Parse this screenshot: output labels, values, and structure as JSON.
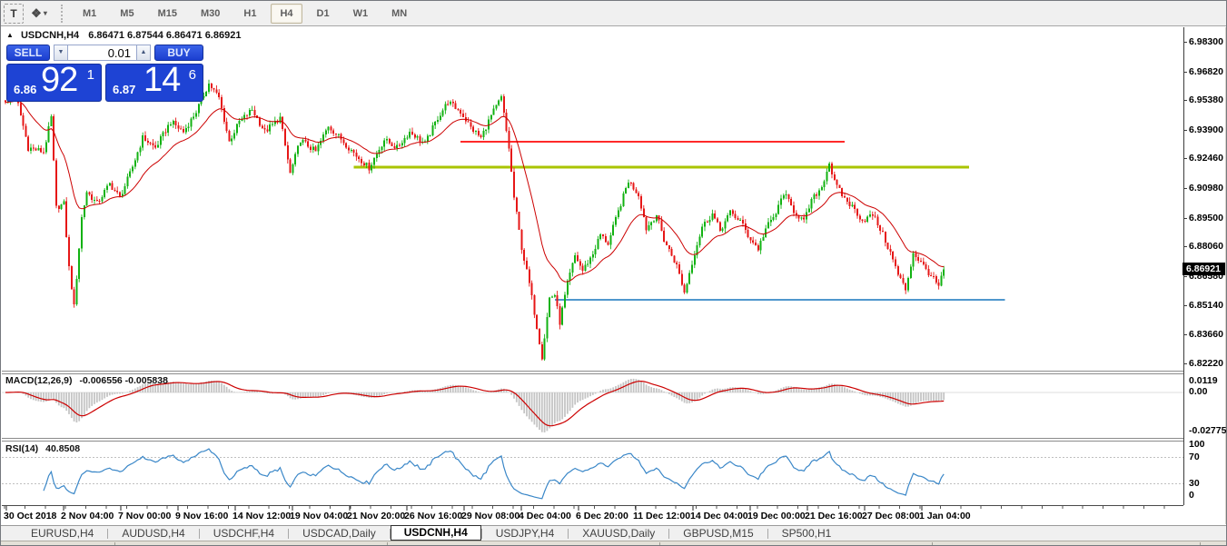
{
  "toolbar": {
    "text_tool_label": "T",
    "timeframes": [
      "M1",
      "M5",
      "M15",
      "M30",
      "H1",
      "H4",
      "D1",
      "W1",
      "MN"
    ],
    "active_timeframe": "H4"
  },
  "chart": {
    "title_symbol": "USDCNH,H4",
    "title_ohlc": "6.86471 6.87544 6.86471 6.86921"
  },
  "trade_panel": {
    "sell_label": "SELL",
    "buy_label": "BUY",
    "volume": "0.01",
    "sell_price_small": "6.86",
    "sell_price_big": "92",
    "sell_price_sup": "1",
    "buy_price_small": "6.87",
    "buy_price_big": "14",
    "buy_price_sup": "6"
  },
  "indicator_panels": {
    "macd": {
      "label": "MACD(12,26,9)",
      "values": "-0.006556 -0.005838"
    },
    "rsi": {
      "label": "RSI(14)",
      "value": "40.8508"
    }
  },
  "tabs": {
    "active_index": 4,
    "items": [
      "EURUSD,H4",
      "AUDUSD,H4",
      "USDCHF,H4",
      "USDCAD,Daily",
      "USDCNH,H4",
      "USDJPY,H4",
      "XAUUSD,Daily",
      "GBPUSD,M15",
      "SP500,H1"
    ]
  },
  "chart_data": {
    "type": "candlestick",
    "symbol": "USDCNH",
    "timeframe": "H4",
    "current_bar": {
      "open": 6.86471,
      "high": 6.87544,
      "low": 6.86471,
      "close": 6.86921
    },
    "current_price": "6.86921",
    "price_ticks": [
      "6.98300",
      "6.96820",
      "6.95380",
      "6.93900",
      "6.92460",
      "6.90980",
      "6.89500",
      "6.88060",
      "6.86580",
      "6.85140",
      "6.83660",
      "6.82220"
    ],
    "price_range": [
      6.8222,
      6.983
    ],
    "time_labels": [
      "30 Oct 2018",
      "2 Nov 04:00",
      "7 Nov 00:00",
      "9 Nov 16:00",
      "14 Nov 12:00",
      "19 Nov 04:00",
      "21 Nov 20:00",
      "26 Nov 16:00",
      "29 Nov 08:00",
      "4 Dec 04:00",
      "6 Dec 20:00",
      "11 Dec 12:00",
      "14 Dec 04:00",
      "19 Dec 00:00",
      "21 Dec 16:00",
      "27 Dec 08:00",
      "1 Jan 04:00"
    ],
    "macd_ticks": [
      "0.0119",
      "0.00",
      "-0.027754"
    ],
    "rsi_ticks": [
      "100",
      "70",
      "30",
      "0"
    ],
    "rsi_levels": [
      70,
      30
    ],
    "bars_visible": 370,
    "colors": {
      "up": "#12b212",
      "down": "#e61717",
      "ma": "#cc0000",
      "macd_hist": "#c4c4c4",
      "macd_signal": "#cc0000",
      "rsi_line": "#3a87c8",
      "level_dash": "#c0c0c0"
    },
    "moving_average": {
      "type": "EMA",
      "period": 20
    },
    "horizontal_lines": [
      {
        "name": "resistance-red",
        "price": 6.933,
        "color": "#ff2a2a",
        "width": 2,
        "bar_from": 179,
        "bar_to": 330
      },
      {
        "name": "resistance-olive",
        "price": 6.9203,
        "color": "#aac400",
        "width": 3,
        "bar_from": 137,
        "bar_to": 379
      },
      {
        "name": "support-teal",
        "price": 6.8538,
        "color": "#4f97cd",
        "width": 2,
        "bar_from": 216,
        "bar_to": 393
      }
    ],
    "close_keyframes": [
      [
        0,
        6.952
      ],
      [
        4,
        6.957
      ],
      [
        9,
        6.93
      ],
      [
        15,
        6.928
      ],
      [
        18,
        6.945
      ],
      [
        20,
        6.9
      ],
      [
        23,
        6.902
      ],
      [
        25,
        6.87
      ],
      [
        27,
        6.8505
      ],
      [
        30,
        6.895
      ],
      [
        32,
        6.908
      ],
      [
        36,
        6.902
      ],
      [
        41,
        6.912
      ],
      [
        45,
        6.905
      ],
      [
        49,
        6.917
      ],
      [
        54,
        6.935
      ],
      [
        59,
        6.93
      ],
      [
        65,
        6.943
      ],
      [
        70,
        6.938
      ],
      [
        75,
        6.948
      ],
      [
        80,
        6.962
      ],
      [
        84,
        6.955
      ],
      [
        88,
        6.933
      ],
      [
        92,
        6.943
      ],
      [
        97,
        6.949
      ],
      [
        102,
        6.938
      ],
      [
        108,
        6.945
      ],
      [
        112,
        6.917
      ],
      [
        116,
        6.934
      ],
      [
        122,
        6.928
      ],
      [
        127,
        6.941
      ],
      [
        133,
        6.933
      ],
      [
        138,
        6.926
      ],
      [
        143,
        6.92
      ],
      [
        149,
        6.934
      ],
      [
        154,
        6.93
      ],
      [
        159,
        6.938
      ],
      [
        165,
        6.932
      ],
      [
        170,
        6.945
      ],
      [
        174,
        6.953
      ],
      [
        179,
        6.948
      ],
      [
        183,
        6.94
      ],
      [
        187,
        6.935
      ],
      [
        191,
        6.946
      ],
      [
        195,
        6.955
      ],
      [
        198,
        6.93
      ],
      [
        200,
        6.905
      ],
      [
        203,
        6.88
      ],
      [
        206,
        6.862
      ],
      [
        209,
        6.8405
      ],
      [
        211,
        6.8255
      ],
      [
        214,
        6.855
      ],
      [
        216,
        6.8565
      ],
      [
        218,
        6.8425
      ],
      [
        221,
        6.862
      ],
      [
        224,
        6.876
      ],
      [
        227,
        6.8685
      ],
      [
        231,
        6.877
      ],
      [
        234,
        6.8865
      ],
      [
        237,
        6.882
      ],
      [
        241,
        6.898
      ],
      [
        245,
        6.9135
      ],
      [
        249,
        6.9065
      ],
      [
        252,
        6.8895
      ],
      [
        256,
        6.8965
      ],
      [
        259,
        6.884
      ],
      [
        264,
        6.871
      ],
      [
        267,
        6.8575
      ],
      [
        271,
        6.8775
      ],
      [
        274,
        6.8905
      ],
      [
        278,
        6.897
      ],
      [
        281,
        6.8885
      ],
      [
        285,
        6.8975
      ],
      [
        289,
        6.8935
      ],
      [
        292,
        6.886
      ],
      [
        296,
        6.8795
      ],
      [
        299,
        6.8895
      ],
      [
        303,
        6.897
      ],
      [
        306,
        6.9075
      ],
      [
        310,
        6.8985
      ],
      [
        314,
        6.893
      ],
      [
        317,
        6.9035
      ],
      [
        321,
        6.9105
      ],
      [
        324,
        6.9225
      ],
      [
        326,
        6.9125
      ],
      [
        330,
        6.9045
      ],
      [
        334,
        6.899
      ],
      [
        337,
        6.8935
      ],
      [
        341,
        6.8965
      ],
      [
        344,
        6.8895
      ],
      [
        348,
        6.8775
      ],
      [
        351,
        6.8665
      ],
      [
        354,
        6.859
      ],
      [
        357,
        6.8775
      ],
      [
        360,
        6.8725
      ],
      [
        364,
        6.866
      ],
      [
        367,
        6.8605
      ],
      [
        369,
        6.86921
      ]
    ]
  }
}
